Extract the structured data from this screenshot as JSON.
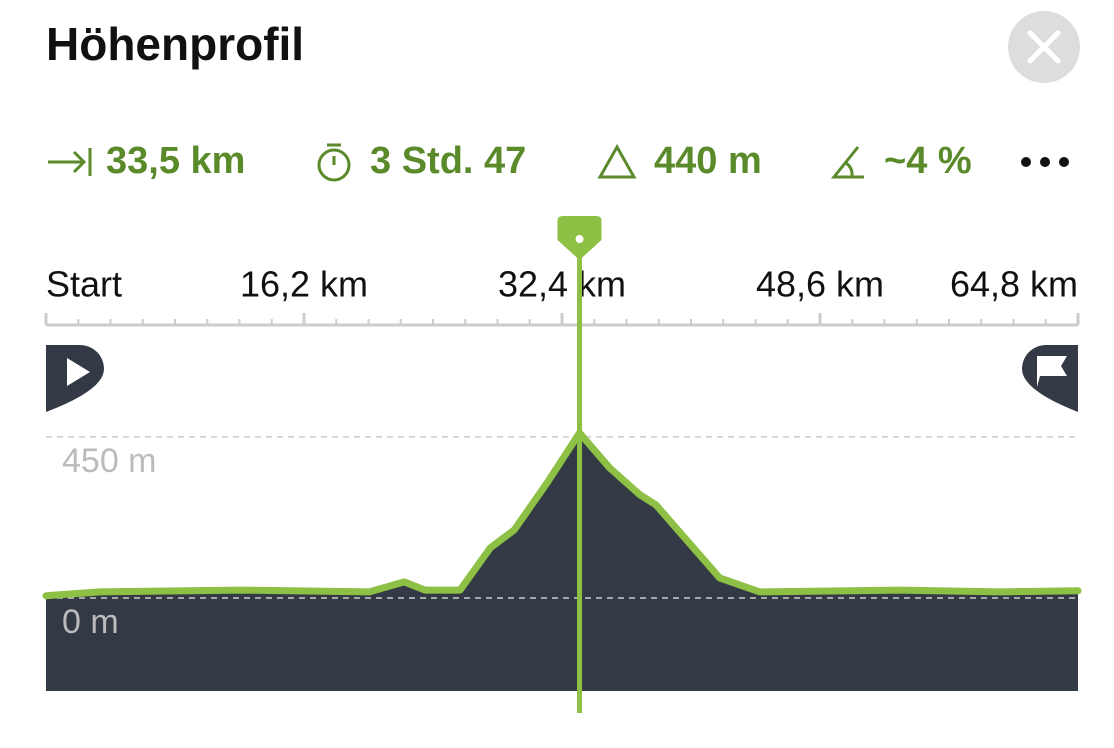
{
  "header": {
    "title": "Höhenprofil"
  },
  "stats": [
    "33,5 km",
    "3 Std. 47",
    "440 m",
    "~4 %"
  ],
  "chart_data": {
    "type": "area",
    "color": "#8dc044",
    "fill": "#333a45",
    "x": [
      0,
      3.4,
      12.2,
      20.3,
      22.5,
      23.8,
      26.0,
      27.9,
      29.4,
      31.5,
      33.5,
      35.4,
      37.3,
      38.3,
      42.3,
      44.8,
      53.6,
      59.9,
      64.8
    ],
    "values": [
      6,
      17,
      22,
      17,
      45,
      22,
      22,
      140,
      190,
      324,
      461,
      363,
      288,
      260,
      56,
      17,
      22,
      17,
      20
    ],
    "xlim": [
      0,
      64.8
    ],
    "xticks": [
      {
        "value": 0,
        "label": "Start"
      },
      {
        "value": 16.2,
        "label": "16,2 km"
      },
      {
        "value": 32.4,
        "label": "32,4 km"
      },
      {
        "value": 48.6,
        "label": "48,6 km"
      },
      {
        "value": 64.8,
        "label": "64,8 km"
      }
    ],
    "ylim": [
      -260,
      500
    ],
    "yticks": [
      {
        "value": 0,
        "label": "0 m"
      },
      {
        "value": 450,
        "label": "450 m"
      }
    ],
    "cursor": 33.5
  }
}
